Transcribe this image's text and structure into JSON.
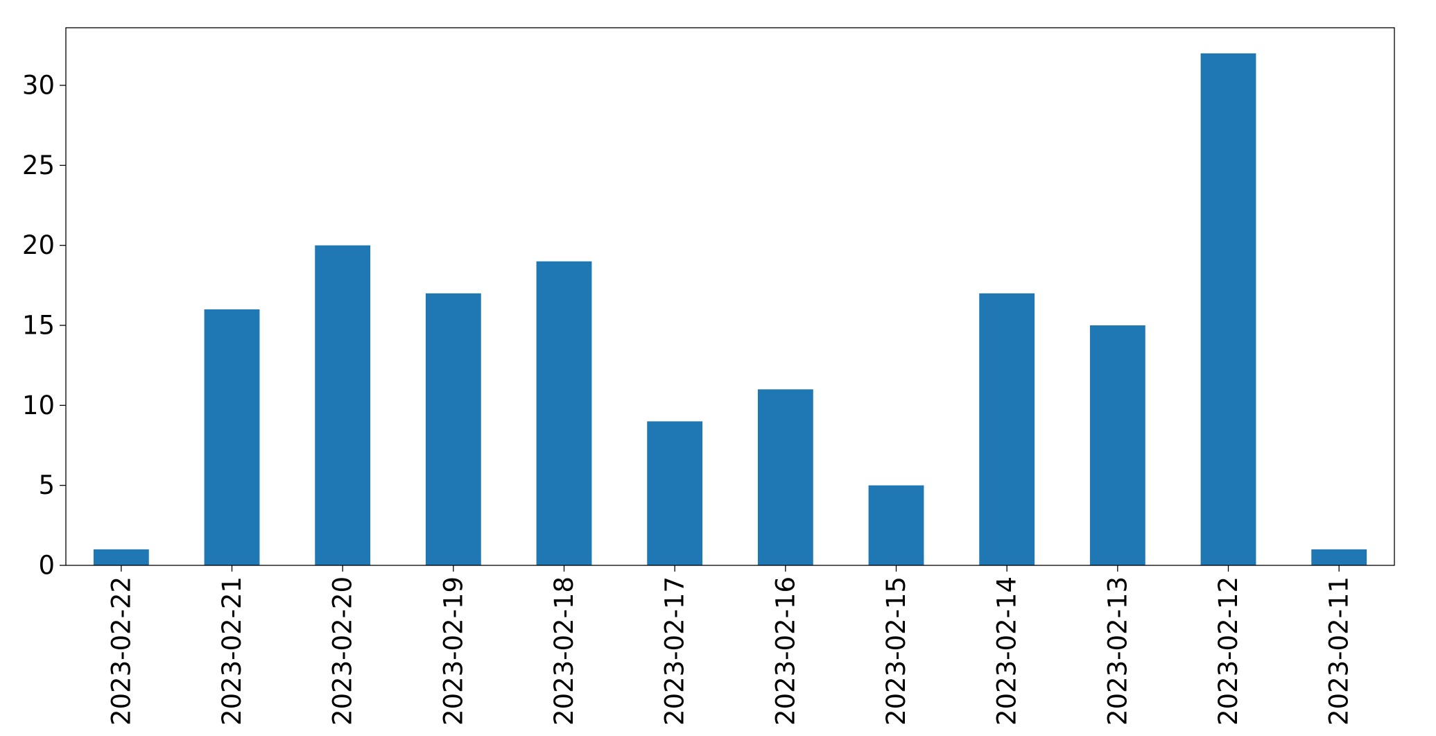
{
  "chart_data": {
    "type": "bar",
    "title": "",
    "xlabel": "",
    "ylabel": "",
    "categories": [
      "2023-02-22",
      "2023-02-21",
      "2023-02-20",
      "2023-02-19",
      "2023-02-18",
      "2023-02-17",
      "2023-02-16",
      "2023-02-15",
      "2023-02-14",
      "2023-02-13",
      "2023-02-12",
      "2023-02-11"
    ],
    "values": [
      1,
      16,
      20,
      17,
      19,
      9,
      11,
      5,
      17,
      15,
      32,
      1
    ],
    "ylim": [
      0,
      33.6
    ],
    "yticks": [
      0,
      5,
      10,
      15,
      20,
      25,
      30
    ],
    "ytick_labels": [
      "0",
      "5",
      "10",
      "15",
      "20",
      "25",
      "30"
    ],
    "grid": false,
    "legend": "none",
    "bar_color": "#1f77b4",
    "x_tick_rotation": "vertical"
  }
}
